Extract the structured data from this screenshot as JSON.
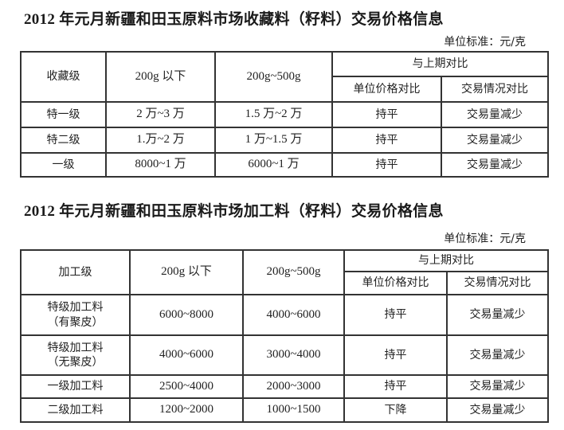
{
  "table1": {
    "title": "2012 年元月新疆和田玉原料市场收藏料（籽料）交易价格信息",
    "unit": "单位标准：元/克",
    "headers": {
      "grade": "收藏级",
      "under200": "200g 以下",
      "range200_500": "200g~500g",
      "comparison": "与上期对比",
      "unit_price": "单位价格对比",
      "trade": "交易情况对比"
    },
    "rows": [
      {
        "grade": "特一级",
        "under200": "2 万~3 万",
        "range200_500": "1.5 万~2 万",
        "unit_price": "持平",
        "trade": "交易量减少"
      },
      {
        "grade": "特二级",
        "under200": "1.万~2 万",
        "range200_500": "1 万~1.5 万",
        "unit_price": "持平",
        "trade": "交易量减少"
      },
      {
        "grade": "一级",
        "under200": "8000~1 万",
        "range200_500": "6000~1 万",
        "unit_price": "持平",
        "trade": "交易量减少"
      }
    ]
  },
  "table2": {
    "title": "2012 年元月新疆和田玉原料市场加工料（籽料）交易价格信息",
    "unit": "单位标准：元/克",
    "headers": {
      "grade": "加工级",
      "under200": "200g 以下",
      "range200_500": "200g~500g",
      "comparison": "与上期对比",
      "unit_price": "单位价格对比",
      "trade": "交易情况对比"
    },
    "rows": [
      {
        "grade": "特级加工料",
        "grade_note": "（有聚皮）",
        "under200": "6000~8000",
        "range200_500": "4000~6000",
        "unit_price": "持平",
        "trade": "交易量减少"
      },
      {
        "grade": "特级加工料",
        "grade_note": "（无聚皮）",
        "under200": "4000~6000",
        "range200_500": "3000~4000",
        "unit_price": "持平",
        "trade": "交易量减少"
      },
      {
        "grade": "一级加工料",
        "under200": "2500~4000",
        "range200_500": "2000~3000",
        "unit_price": "持平",
        "trade": "交易量减少"
      },
      {
        "grade": "二级加工料",
        "under200": "1200~2000",
        "range200_500": "1000~1500",
        "unit_price": "下降",
        "trade": "交易量减少"
      }
    ]
  }
}
